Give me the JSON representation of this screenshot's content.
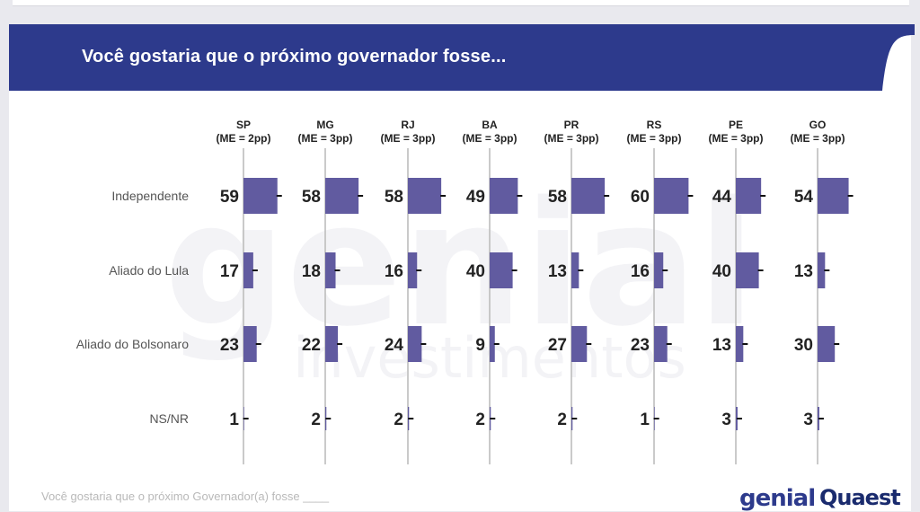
{
  "title": "Você gostaria que o próximo governador fosse...",
  "footer_note": "Você gostaria que o próximo Governador(a) fosse ____",
  "logos": {
    "genial": "genial",
    "quaest": "Quaest"
  },
  "watermark": {
    "line1": "genial",
    "line2": "investimentos"
  },
  "colors": {
    "banner": "#2d3a8c",
    "bar": "#615ba0",
    "axis": "#bdbdbd",
    "text": "#222222",
    "label": "#555555"
  },
  "chart_data": {
    "type": "bar",
    "states": [
      {
        "name": "SP",
        "me": "(ME = 2pp)"
      },
      {
        "name": "MG",
        "me": "(ME = 3pp)"
      },
      {
        "name": "RJ",
        "me": "(ME = 3pp)"
      },
      {
        "name": "BA",
        "me": "(ME = 3pp)"
      },
      {
        "name": "PR",
        "me": "(ME = 3pp)"
      },
      {
        "name": "RS",
        "me": "(ME = 3pp)"
      },
      {
        "name": "PE",
        "me": "(ME = 3pp)"
      },
      {
        "name": "GO",
        "me": "(ME = 3pp)"
      }
    ],
    "categories": [
      "Independente",
      "Aliado do Lula",
      "Aliado do Bolsonaro",
      "NS/NR"
    ],
    "values": [
      [
        59,
        58,
        58,
        49,
        58,
        60,
        44,
        54
      ],
      [
        17,
        18,
        16,
        40,
        13,
        16,
        40,
        13
      ],
      [
        23,
        22,
        24,
        9,
        27,
        23,
        13,
        30
      ],
      [
        1,
        2,
        2,
        2,
        2,
        1,
        3,
        3
      ]
    ],
    "unit": "%",
    "error_bars": true
  }
}
